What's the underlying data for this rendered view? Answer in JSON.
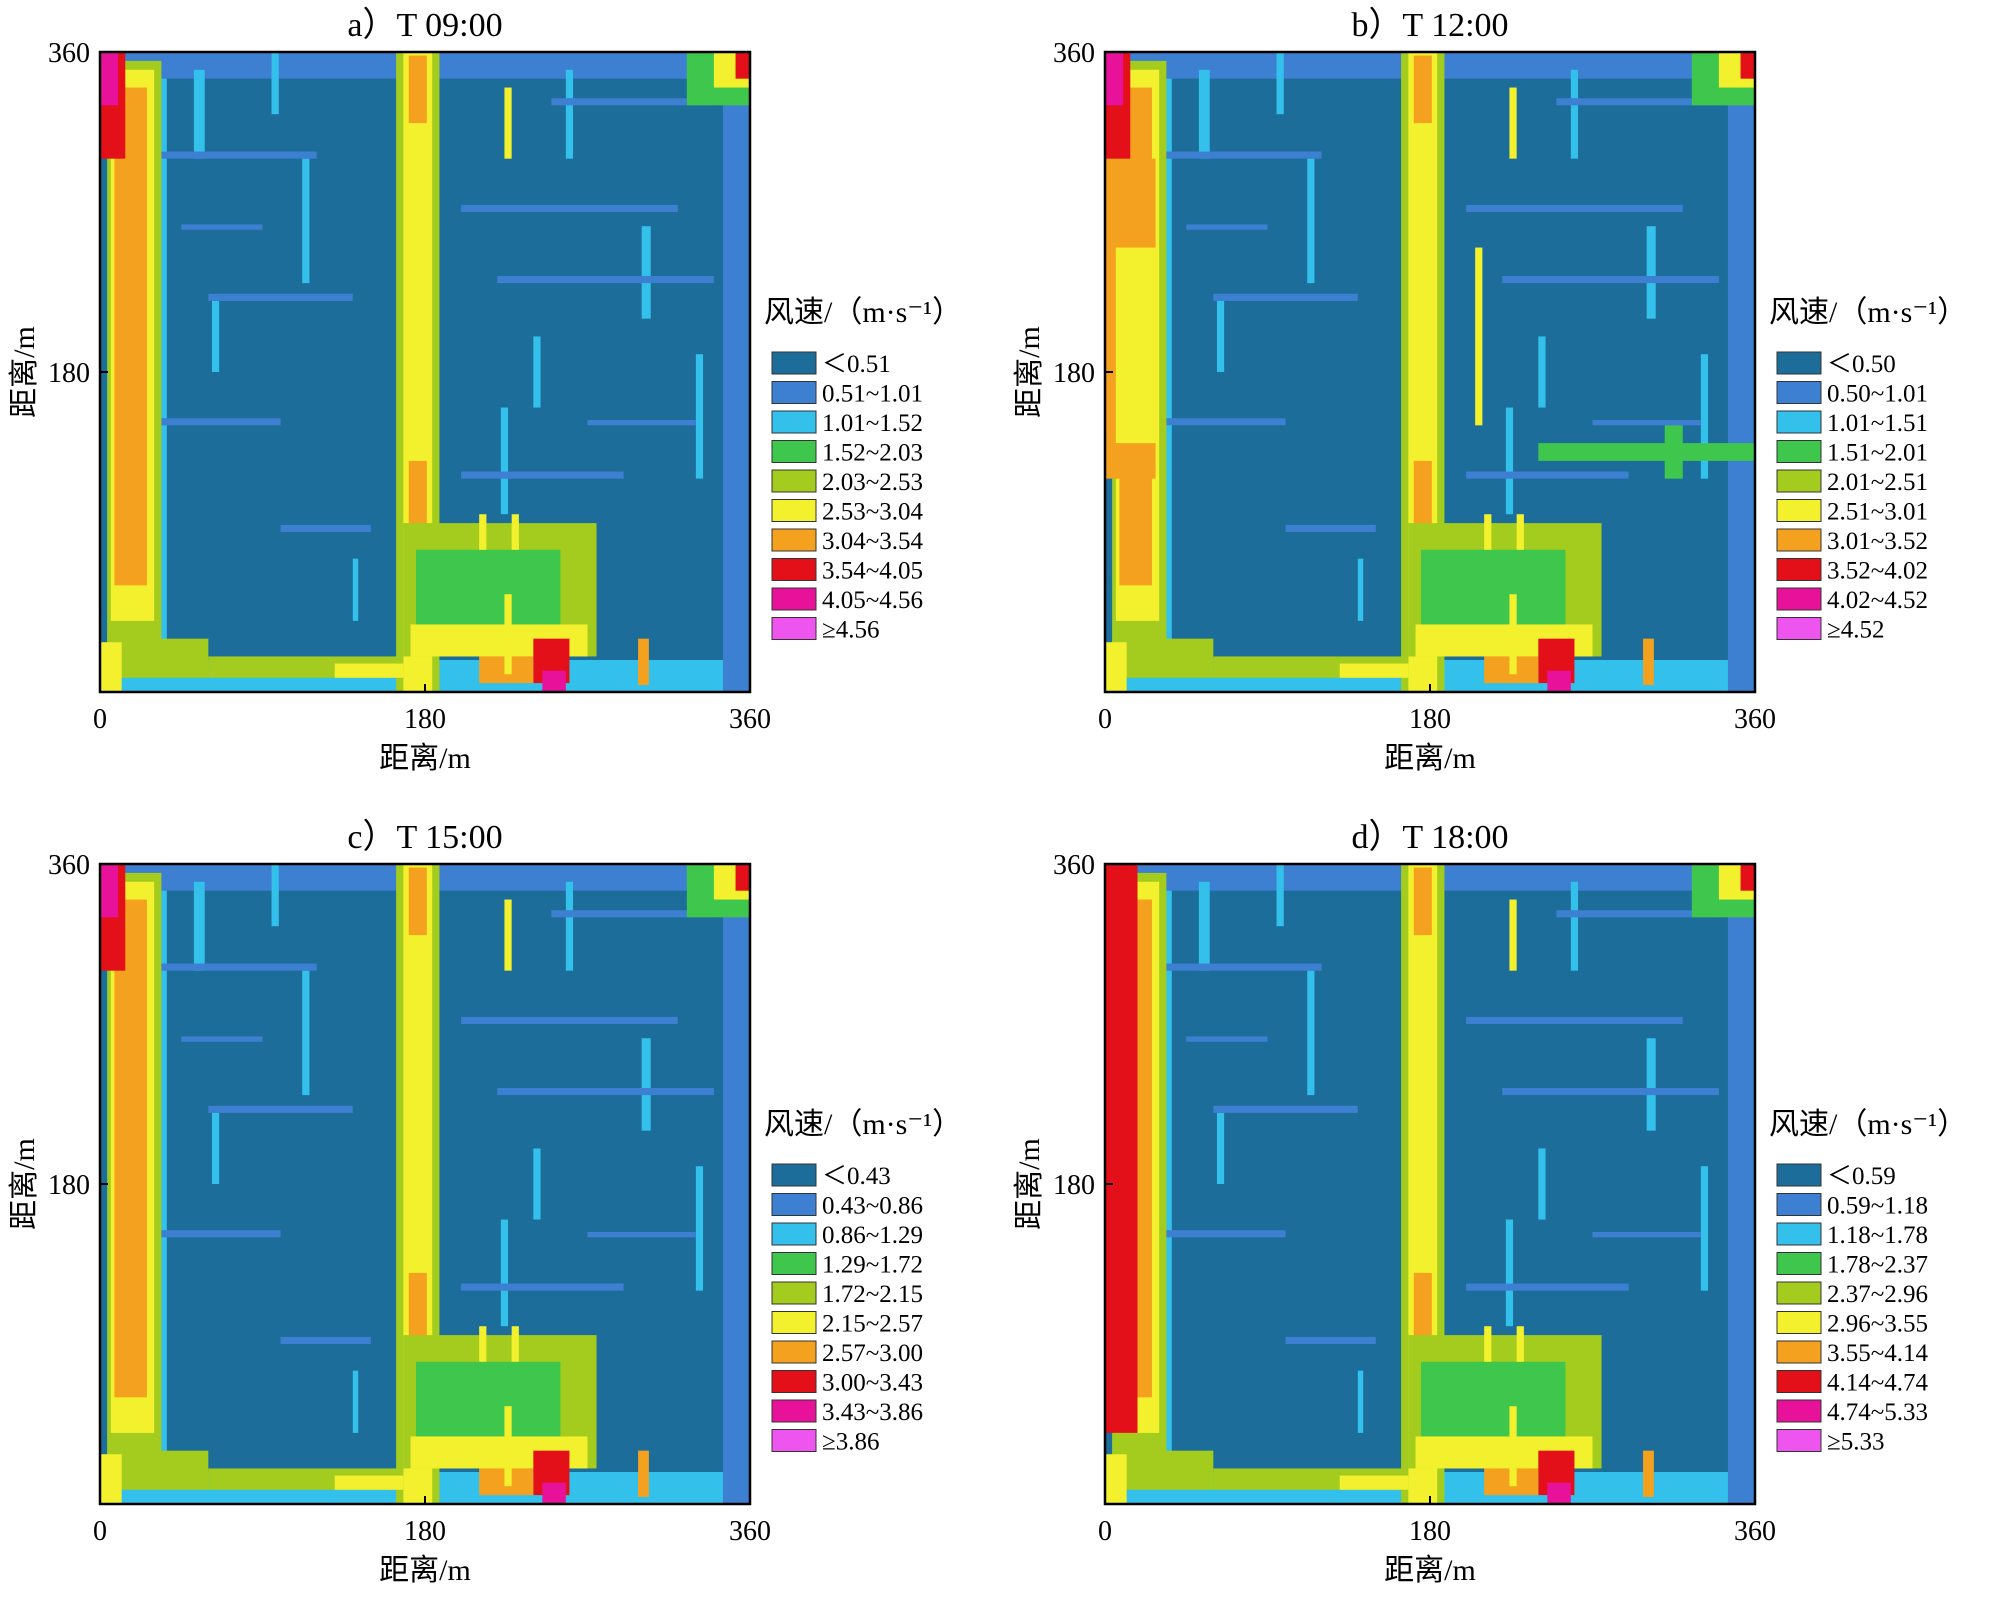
{
  "chart_data": [
    {
      "type": "heatmap",
      "title": "a）T 09:00",
      "xlabel": "距离/m",
      "ylabel": "距离/m",
      "xlim": [
        0,
        360
      ],
      "ylim": [
        0,
        360
      ],
      "xticks": [
        "0",
        "180",
        "360"
      ],
      "yticks": [
        "180",
        "360"
      ],
      "legend_title": "风速/（m·s⁻¹）",
      "legend_position": "right",
      "legend": [
        {
          "label": "＜0.51",
          "color": "#1c6d9a"
        },
        {
          "label": "0.51~1.01",
          "color": "#3d7fd1"
        },
        {
          "label": "1.01~1.52",
          "color": "#33c1ec"
        },
        {
          "label": "1.52~2.03",
          "color": "#3fc64c"
        },
        {
          "label": "2.03~2.53",
          "color": "#a3cc1f"
        },
        {
          "label": "2.53~3.04",
          "color": "#f3f12d"
        },
        {
          "label": "3.04~3.54",
          "color": "#f3a11e"
        },
        {
          "label": "3.54~4.05",
          "color": "#e3101a"
        },
        {
          "label": "4.05~4.56",
          "color": "#e8129a"
        },
        {
          "label": "≥4.56",
          "color": "#ee55ee"
        }
      ]
    },
    {
      "type": "heatmap",
      "title": "b）T 12:00",
      "xlabel": "距离/m",
      "ylabel": "距离/m",
      "xlim": [
        0,
        360
      ],
      "ylim": [
        0,
        360
      ],
      "xticks": [
        "0",
        "180",
        "360"
      ],
      "yticks": [
        "180",
        "360"
      ],
      "legend_title": "风速/（m·s⁻¹）",
      "legend_position": "right",
      "legend": [
        {
          "label": "＜0.50",
          "color": "#1c6d9a"
        },
        {
          "label": "0.50~1.01",
          "color": "#3d7fd1"
        },
        {
          "label": "1.01~1.51",
          "color": "#33c1ec"
        },
        {
          "label": "1.51~2.01",
          "color": "#3fc64c"
        },
        {
          "label": "2.01~2.51",
          "color": "#a3cc1f"
        },
        {
          "label": "2.51~3.01",
          "color": "#f3f12d"
        },
        {
          "label": "3.01~3.52",
          "color": "#f3a11e"
        },
        {
          "label": "3.52~4.02",
          "color": "#e3101a"
        },
        {
          "label": "4.02~4.52",
          "color": "#e8129a"
        },
        {
          "label": "≥4.52",
          "color": "#ee55ee"
        }
      ]
    },
    {
      "type": "heatmap",
      "title": "c）T 15:00",
      "xlabel": "距离/m",
      "ylabel": "距离/m",
      "xlim": [
        0,
        360
      ],
      "ylim": [
        0,
        360
      ],
      "xticks": [
        "0",
        "180",
        "360"
      ],
      "yticks": [
        "180",
        "360"
      ],
      "legend_title": "风速/（m·s⁻¹）",
      "legend_position": "right",
      "legend": [
        {
          "label": "＜0.43",
          "color": "#1c6d9a"
        },
        {
          "label": "0.43~0.86",
          "color": "#3d7fd1"
        },
        {
          "label": "0.86~1.29",
          "color": "#33c1ec"
        },
        {
          "label": "1.29~1.72",
          "color": "#3fc64c"
        },
        {
          "label": "1.72~2.15",
          "color": "#a3cc1f"
        },
        {
          "label": "2.15~2.57",
          "color": "#f3f12d"
        },
        {
          "label": "2.57~3.00",
          "color": "#f3a11e"
        },
        {
          "label": "3.00~3.43",
          "color": "#e3101a"
        },
        {
          "label": "3.43~3.86",
          "color": "#e8129a"
        },
        {
          "label": "≥3.86",
          "color": "#ee55ee"
        }
      ]
    },
    {
      "type": "heatmap",
      "title": "d）T 18:00",
      "xlabel": "距离/m",
      "ylabel": "距离/m",
      "xlim": [
        0,
        360
      ],
      "ylim": [
        0,
        360
      ],
      "xticks": [
        "0",
        "180",
        "360"
      ],
      "yticks": [
        "180",
        "360"
      ],
      "legend_title": "风速/（m·s⁻¹）",
      "legend_position": "right",
      "legend": [
        {
          "label": "＜0.59",
          "color": "#1c6d9a"
        },
        {
          "label": "0.59~1.18",
          "color": "#3d7fd1"
        },
        {
          "label": "1.18~1.78",
          "color": "#33c1ec"
        },
        {
          "label": "1.78~2.37",
          "color": "#3fc64c"
        },
        {
          "label": "2.37~2.96",
          "color": "#a3cc1f"
        },
        {
          "label": "2.96~3.55",
          "color": "#f3f12d"
        },
        {
          "label": "3.55~4.14",
          "color": "#f3a11e"
        },
        {
          "label": "4.14~4.74",
          "color": "#e3101a"
        },
        {
          "label": "4.74~5.33",
          "color": "#e8129a"
        },
        {
          "label": "≥5.33",
          "color": "#ee55ee"
        }
      ]
    }
  ]
}
